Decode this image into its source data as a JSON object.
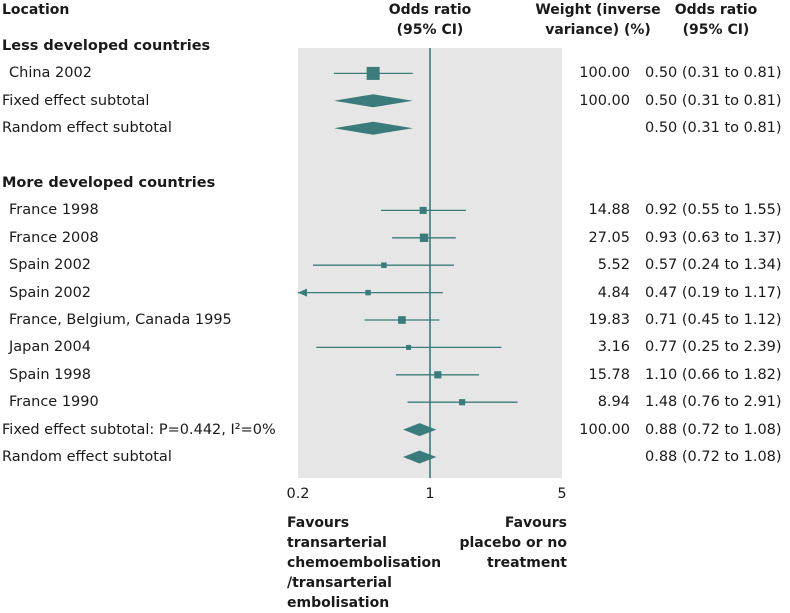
{
  "headers": {
    "location": "Location",
    "or_axis_1": "Odds ratio",
    "or_axis_2": "(95% CI)",
    "weight_1": "Weight (inverse",
    "weight_2": "variance) (%)",
    "or_col_1": "Odds ratio",
    "or_col_2": "(95% CI)"
  },
  "footer": {
    "left_1": "Favours",
    "left_2": "transarterial",
    "left_3": "chemoembolisation",
    "left_4": "/transarterial",
    "left_5": "embolisation",
    "right_1": "Favours",
    "right_2": "placebo or no",
    "right_3": "treatment"
  },
  "colors": {
    "shade": "#e6e6e6",
    "mark": "#3a7c7b"
  },
  "chart_data": {
    "type": "forest",
    "scale": "log",
    "xlim": [
      0.2,
      5
    ],
    "xticks": [
      {
        "value": 0.2,
        "label": "0.2"
      },
      {
        "value": 1,
        "label": "1"
      },
      {
        "value": 5,
        "label": "5"
      }
    ],
    "null_line": 1,
    "rows": [
      {
        "kind": "section",
        "label": "Less developed countries"
      },
      {
        "kind": "study",
        "label": "China 2002",
        "or": 0.5,
        "lo": 0.31,
        "hi": 0.81,
        "weight": "100.00",
        "ci_text": "0.50 (0.31 to 0.81)",
        "box_size": 100
      },
      {
        "kind": "summary",
        "label": "Fixed effect subtotal",
        "or": 0.5,
        "lo": 0.31,
        "hi": 0.81,
        "weight": "100.00",
        "ci_text": "0.50 (0.31 to 0.81)"
      },
      {
        "kind": "summary",
        "label": "Random effect subtotal",
        "or": 0.5,
        "lo": 0.31,
        "hi": 0.81,
        "weight": "",
        "ci_text": "0.50 (0.31 to 0.81)"
      },
      {
        "kind": "blank"
      },
      {
        "kind": "section",
        "label": "More developed countries"
      },
      {
        "kind": "study",
        "label": "France 1998",
        "or": 0.92,
        "lo": 0.55,
        "hi": 1.55,
        "weight": "14.88",
        "ci_text": "0.92 (0.55 to 1.55)",
        "box_size": 14.88
      },
      {
        "kind": "study",
        "label": "France 2008",
        "or": 0.93,
        "lo": 0.63,
        "hi": 1.37,
        "weight": "27.05",
        "ci_text": "0.93 (0.63 to 1.37)",
        "box_size": 27.05
      },
      {
        "kind": "study",
        "label": "Spain 2002",
        "or": 0.57,
        "lo": 0.24,
        "hi": 1.34,
        "weight": "5.52",
        "ci_text": "0.57 (0.24 to 1.34)",
        "box_size": 5.52
      },
      {
        "kind": "study",
        "label": "Spain 2002",
        "or": 0.47,
        "lo": 0.19,
        "hi": 1.17,
        "weight": "4.84",
        "ci_text": "0.47 (0.19 to 1.17)",
        "box_size": 4.84,
        "truncated_left": true
      },
      {
        "kind": "study",
        "label": "France, Belgium, Canada 1995",
        "or": 0.71,
        "lo": 0.45,
        "hi": 1.12,
        "weight": "19.83",
        "ci_text": "0.71 (0.45 to 1.12)",
        "box_size": 19.83
      },
      {
        "kind": "study",
        "label": "Japan 2004",
        "or": 0.77,
        "lo": 0.25,
        "hi": 2.39,
        "weight": "3.16",
        "ci_text": "0.77 (0.25 to 2.39)",
        "box_size": 3.16
      },
      {
        "kind": "study",
        "label": "Spain 1998",
        "or": 1.1,
        "lo": 0.66,
        "hi": 1.82,
        "weight": "15.78",
        "ci_text": "1.10 (0.66 to 1.82)",
        "box_size": 15.78
      },
      {
        "kind": "study",
        "label": "France 1990",
        "or": 1.48,
        "lo": 0.76,
        "hi": 2.91,
        "weight": "8.94",
        "ci_text": "1.48 (0.76 to 2.91)",
        "box_size": 8.94
      },
      {
        "kind": "summary",
        "label": "Fixed effect subtotal: P=0.442, I²=0%",
        "or": 0.88,
        "lo": 0.72,
        "hi": 1.08,
        "weight": "100.00",
        "ci_text": "0.88 (0.72 to 1.08)"
      },
      {
        "kind": "summary",
        "label": "Random effect subtotal",
        "or": 0.88,
        "lo": 0.72,
        "hi": 1.08,
        "weight": "",
        "ci_text": "0.88 (0.72 to 1.08)"
      }
    ]
  }
}
